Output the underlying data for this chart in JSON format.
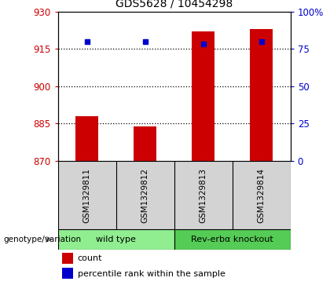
{
  "title": "GDS5628 / 10454298",
  "samples": [
    "GSM1329811",
    "GSM1329812",
    "GSM1329813",
    "GSM1329814"
  ],
  "count_values": [
    888,
    884,
    922,
    923
  ],
  "percentile_values": [
    918,
    918,
    917,
    918
  ],
  "y_min": 870,
  "y_max": 930,
  "y_ticks": [
    870,
    885,
    900,
    915,
    930
  ],
  "y2_ticks": [
    0,
    25,
    50,
    75,
    100
  ],
  "bar_color": "#cc0000",
  "marker_color": "#0000cc",
  "groups": [
    {
      "label": "wild type",
      "samples": [
        0,
        1
      ],
      "color": "#90EE90"
    },
    {
      "label": "Rev-erbα knockout",
      "samples": [
        2,
        3
      ],
      "color": "#55cc55"
    }
  ],
  "legend_count_label": "count",
  "legend_percentile_label": "percentile rank within the sample",
  "genotype_label": "genotype/variation",
  "tick_color_left": "#cc0000",
  "tick_color_right": "#0000cc",
  "sample_bg_color": "#d3d3d3",
  "bar_width": 0.4
}
